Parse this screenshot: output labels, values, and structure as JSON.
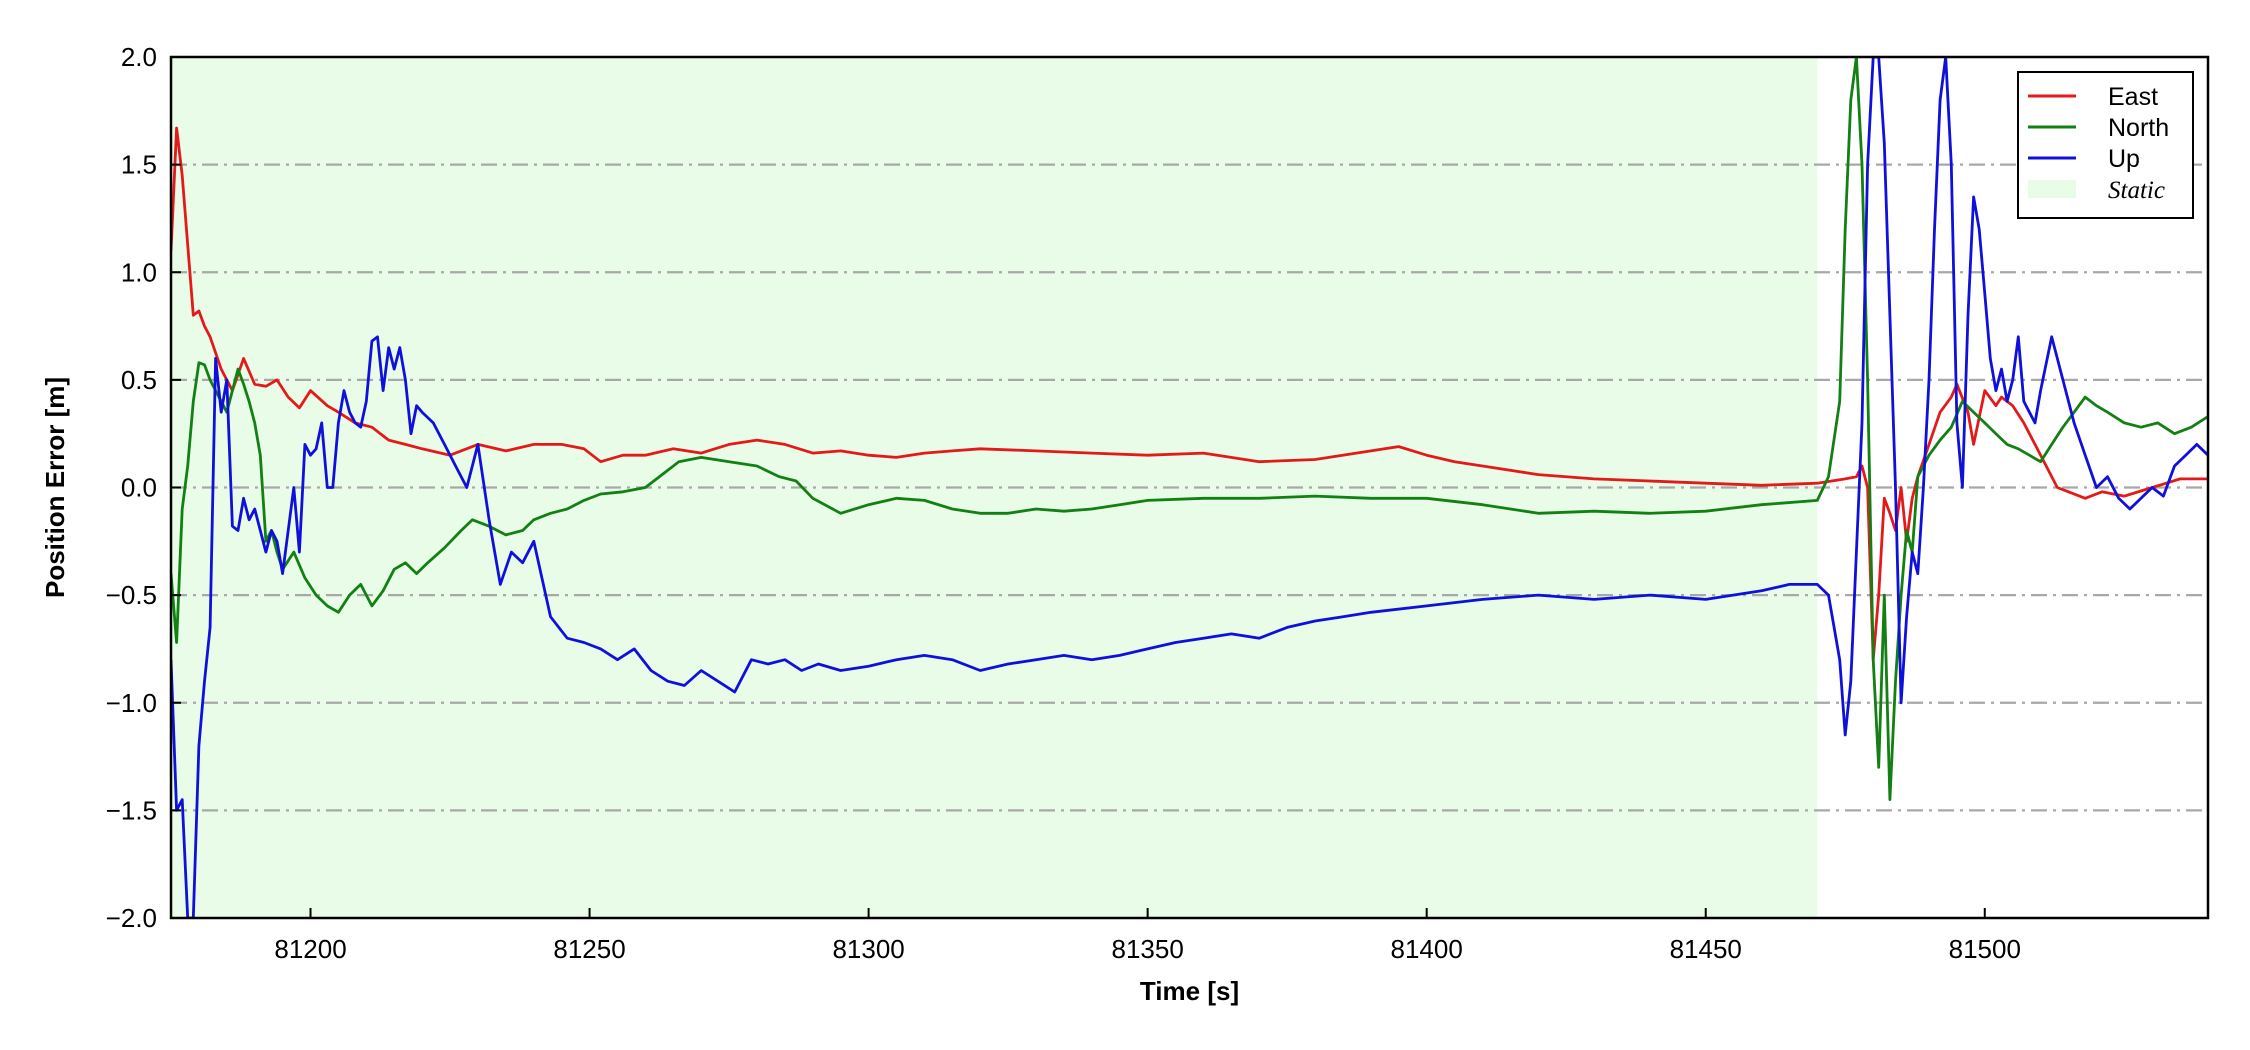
{
  "chart_data": {
    "type": "line",
    "title": "",
    "xlabel": "Time [s]",
    "ylabel": "Position Error [m]",
    "xlim": [
      81175,
      81540
    ],
    "ylim": [
      -2.0,
      2.0
    ],
    "xticks": [
      81200,
      81250,
      81300,
      81350,
      81400,
      81450,
      81500
    ],
    "xtick_labels": [
      "81200",
      "81250",
      "81300",
      "81350",
      "81400",
      "81450",
      "81500"
    ],
    "yticks": [
      2.0,
      1.5,
      1.0,
      0.5,
      0.0,
      -0.5,
      -1.0,
      -1.5,
      -2.0
    ],
    "ytick_labels": [
      "2.0",
      "1.5",
      "1.0",
      "0.5",
      "0.0",
      "−0.5",
      "−1.0",
      "−1.5",
      "−2.0"
    ],
    "grid": "horizontal dash-dot",
    "legend_position": "top-right",
    "shaded_regions": [
      {
        "label": "Static",
        "x0": 81175,
        "x1": 81470,
        "color": "#e8fce8"
      }
    ],
    "series": [
      {
        "name": "East",
        "color": "#e41a1a",
        "x": [
          81175,
          81176,
          81177,
          81179,
          81180,
          81181,
          81182,
          81184,
          81186,
          81188,
          81190,
          81192,
          81194,
          81196,
          81198,
          81200,
          81203,
          81205,
          81208,
          81211,
          81214,
          81217,
          81220,
          81225,
          81230,
          81235,
          81240,
          81245,
          81249,
          81252,
          81256,
          81260,
          81265,
          81270,
          81275,
          81280,
          81285,
          81290,
          81295,
          81300,
          81305,
          81310,
          81315,
          81320,
          81330,
          81340,
          81350,
          81360,
          81370,
          81380,
          81390,
          81395,
          81400,
          81405,
          81410,
          81420,
          81430,
          81440,
          81450,
          81460,
          81470,
          81475,
          81477,
          81478,
          81479,
          81480,
          81481,
          81482,
          81483,
          81484,
          81485,
          81486,
          81487,
          81488,
          81490,
          81492,
          81494,
          81495,
          81497,
          81498,
          81500,
          81502,
          81503,
          81505,
          81507,
          81509,
          81511,
          81513,
          81515,
          81518,
          81521,
          81525,
          81530,
          81535,
          81540
        ],
        "y": [
          1.1,
          1.67,
          1.45,
          0.8,
          0.82,
          0.75,
          0.7,
          0.55,
          0.45,
          0.6,
          0.48,
          0.47,
          0.5,
          0.42,
          0.37,
          0.45,
          0.38,
          0.35,
          0.3,
          0.28,
          0.22,
          0.2,
          0.18,
          0.15,
          0.2,
          0.17,
          0.2,
          0.2,
          0.18,
          0.12,
          0.15,
          0.15,
          0.18,
          0.16,
          0.2,
          0.22,
          0.2,
          0.16,
          0.17,
          0.15,
          0.14,
          0.16,
          0.17,
          0.18,
          0.17,
          0.16,
          0.15,
          0.16,
          0.12,
          0.13,
          0.17,
          0.19,
          0.15,
          0.12,
          0.1,
          0.06,
          0.04,
          0.03,
          0.02,
          0.01,
          0.02,
          0.04,
          0.05,
          0.1,
          0.0,
          -0.8,
          -0.5,
          -0.05,
          -0.12,
          -0.2,
          0.0,
          -0.25,
          -0.05,
          0.05,
          0.2,
          0.35,
          0.42,
          0.48,
          0.35,
          0.2,
          0.45,
          0.38,
          0.42,
          0.38,
          0.3,
          0.2,
          0.1,
          0.0,
          -0.02,
          -0.05,
          -0.02,
          -0.04,
          0.0,
          0.04,
          0.04
        ]
      },
      {
        "name": "North",
        "color": "#128012",
        "x": [
          81175,
          81176,
          81177,
          81178,
          81179,
          81180,
          81181,
          81182,
          81183,
          81184,
          81185,
          81186,
          81187,
          81188,
          81189,
          81190,
          81191,
          81192,
          81193,
          81194,
          81195,
          81197,
          81199,
          81201,
          81203,
          81205,
          81207,
          81209,
          81211,
          81213,
          81215,
          81217,
          81219,
          81221,
          81224,
          81227,
          81229,
          81232,
          81235,
          81238,
          81240,
          81243,
          81246,
          81249,
          81252,
          81256,
          81260,
          81263,
          81266,
          81270,
          81275,
          81280,
          81284,
          81287,
          81290,
          81295,
          81300,
          81305,
          81310,
          81315,
          81320,
          81325,
          81330,
          81335,
          81340,
          81345,
          81350,
          81360,
          81370,
          81380,
          81390,
          81400,
          81410,
          81420,
          81430,
          81440,
          81450,
          81460,
          81470,
          81472,
          81474,
          81475,
          81476,
          81477,
          81478,
          81479,
          81480,
          81481,
          81482,
          81483,
          81484,
          81485,
          81486,
          81487,
          81488,
          81490,
          81492,
          81494,
          81496,
          81498,
          81500,
          81502,
          81504,
          81506,
          81508,
          81510,
          81512,
          81514,
          81516,
          81518,
          81520,
          81522,
          81525,
          81528,
          81531,
          81534,
          81537,
          81540
        ],
        "y": [
          -0.4,
          -0.72,
          -0.1,
          0.1,
          0.4,
          0.58,
          0.57,
          0.5,
          0.45,
          0.4,
          0.35,
          0.45,
          0.55,
          0.48,
          0.4,
          0.3,
          0.15,
          -0.25,
          -0.2,
          -0.3,
          -0.38,
          -0.3,
          -0.42,
          -0.5,
          -0.55,
          -0.58,
          -0.5,
          -0.45,
          -0.55,
          -0.48,
          -0.38,
          -0.35,
          -0.4,
          -0.35,
          -0.28,
          -0.2,
          -0.15,
          -0.18,
          -0.22,
          -0.2,
          -0.15,
          -0.12,
          -0.1,
          -0.06,
          -0.03,
          -0.02,
          0.0,
          0.06,
          0.12,
          0.14,
          0.12,
          0.1,
          0.05,
          0.03,
          -0.05,
          -0.12,
          -0.08,
          -0.05,
          -0.06,
          -0.1,
          -0.12,
          -0.12,
          -0.1,
          -0.11,
          -0.1,
          -0.08,
          -0.06,
          -0.05,
          -0.05,
          -0.04,
          -0.05,
          -0.05,
          -0.08,
          -0.12,
          -0.11,
          -0.12,
          -0.11,
          -0.08,
          -0.06,
          0.05,
          0.4,
          1.2,
          1.8,
          2.0,
          1.5,
          0.5,
          -0.8,
          -1.3,
          -0.5,
          -1.45,
          -0.9,
          -0.5,
          -0.2,
          -0.3,
          0.05,
          0.15,
          0.22,
          0.28,
          0.4,
          0.35,
          0.3,
          0.25,
          0.2,
          0.18,
          0.15,
          0.12,
          0.2,
          0.28,
          0.35,
          0.42,
          0.38,
          0.35,
          0.3,
          0.28,
          0.3,
          0.25,
          0.28,
          0.33
        ]
      },
      {
        "name": "Up",
        "color": "#1010dd",
        "x": [
          81175,
          81176,
          81177,
          81178,
          81179,
          81180,
          81181,
          81182,
          81183,
          81184,
          81185,
          81186,
          81187,
          81188,
          81189,
          81190,
          81191,
          81192,
          81193,
          81194,
          81195,
          81196,
          81197,
          81198,
          81199,
          81200,
          81201,
          81202,
          81203,
          81204,
          81205,
          81206,
          81207,
          81208,
          81209,
          81210,
          81211,
          81212,
          81213,
          81214,
          81215,
          81216,
          81217,
          81218,
          81219,
          81220,
          81222,
          81224,
          81226,
          81228,
          81230,
          81232,
          81234,
          81236,
          81238,
          81240,
          81243,
          81246,
          81249,
          81252,
          81255,
          81258,
          81261,
          81264,
          81267,
          81270,
          81273,
          81276,
          81279,
          81282,
          81285,
          81288,
          81291,
          81295,
          81300,
          81305,
          81310,
          81315,
          81320,
          81325,
          81330,
          81335,
          81340,
          81345,
          81350,
          81355,
          81360,
          81365,
          81370,
          81375,
          81380,
          81385,
          81390,
          81400,
          81410,
          81420,
          81430,
          81440,
          81450,
          81460,
          81465,
          81470,
          81472,
          81474,
          81475,
          81476,
          81477,
          81478,
          81479,
          81480,
          81481,
          81482,
          81483,
          81484,
          81485,
          81486,
          81487,
          81488,
          81489,
          81490,
          81491,
          81492,
          81493,
          81494,
          81495,
          81496,
          81497,
          81498,
          81499,
          81500,
          81501,
          81502,
          81503,
          81504,
          81505,
          81506,
          81507,
          81508,
          81509,
          81510,
          81512,
          81514,
          81516,
          81518,
          81520,
          81522,
          81524,
          81526,
          81528,
          81530,
          81532,
          81534,
          81536,
          81538,
          81540
        ],
        "y": [
          -0.8,
          -1.5,
          -1.45,
          -2.0,
          -2.0,
          -1.2,
          -0.9,
          -0.65,
          0.6,
          0.35,
          0.5,
          -0.18,
          -0.2,
          -0.05,
          -0.15,
          -0.1,
          -0.2,
          -0.3,
          -0.2,
          -0.25,
          -0.4,
          -0.2,
          0.0,
          -0.3,
          0.2,
          0.15,
          0.18,
          0.3,
          0.0,
          0.0,
          0.3,
          0.45,
          0.35,
          0.3,
          0.28,
          0.4,
          0.68,
          0.7,
          0.45,
          0.65,
          0.55,
          0.65,
          0.5,
          0.25,
          0.38,
          0.35,
          0.3,
          0.2,
          0.1,
          0.0,
          0.2,
          -0.15,
          -0.45,
          -0.3,
          -0.35,
          -0.25,
          -0.6,
          -0.7,
          -0.72,
          -0.75,
          -0.8,
          -0.75,
          -0.85,
          -0.9,
          -0.92,
          -0.85,
          -0.9,
          -0.95,
          -0.8,
          -0.82,
          -0.8,
          -0.85,
          -0.82,
          -0.85,
          -0.83,
          -0.8,
          -0.78,
          -0.8,
          -0.85,
          -0.82,
          -0.8,
          -0.78,
          -0.8,
          -0.78,
          -0.75,
          -0.72,
          -0.7,
          -0.68,
          -0.7,
          -0.65,
          -0.62,
          -0.6,
          -0.58,
          -0.55,
          -0.52,
          -0.5,
          -0.52,
          -0.5,
          -0.52,
          -0.48,
          -0.45,
          -0.45,
          -0.5,
          -0.8,
          -1.15,
          -0.9,
          -0.3,
          0.3,
          1.5,
          2.0,
          2.0,
          1.6,
          0.8,
          0.0,
          -1.0,
          -0.6,
          -0.3,
          -0.4,
          0.0,
          0.5,
          1.2,
          1.8,
          2.0,
          1.5,
          0.3,
          0.0,
          0.8,
          1.35,
          1.2,
          0.9,
          0.6,
          0.45,
          0.55,
          0.4,
          0.5,
          0.7,
          0.4,
          0.35,
          0.3,
          0.45,
          0.7,
          0.5,
          0.3,
          0.15,
          0.0,
          0.05,
          -0.05,
          -0.1,
          -0.05,
          0.0,
          -0.04,
          0.1,
          0.15,
          0.2,
          0.15
        ]
      }
    ]
  },
  "legend": {
    "items": [
      {
        "label": "East",
        "color": "#e41a1a",
        "kind": "line"
      },
      {
        "label": "North",
        "color": "#128012",
        "kind": "line"
      },
      {
        "label": "Up",
        "color": "#1010dd",
        "kind": "line"
      },
      {
        "label": "Static",
        "color": "#e8fce8",
        "kind": "patch"
      }
    ]
  }
}
